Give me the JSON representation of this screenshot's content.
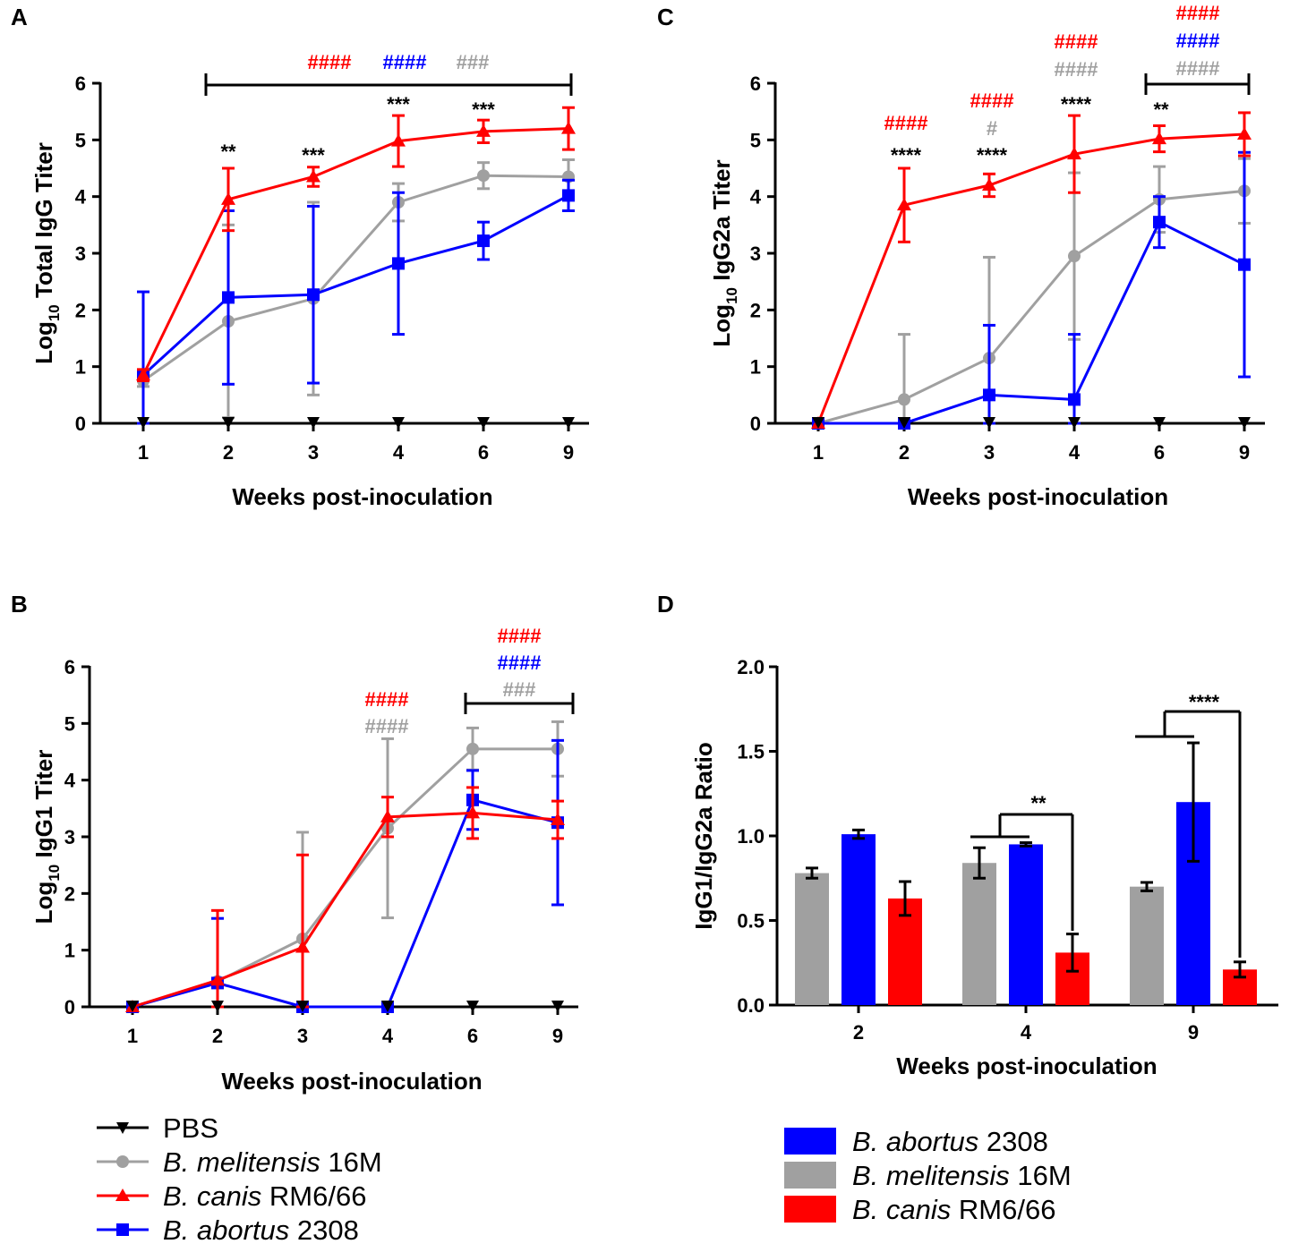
{
  "colors": {
    "pbs": "#000000",
    "melitensis": "#a0a0a0",
    "canis": "#ff0000",
    "abortus": "#0000ff",
    "axis": "#000000"
  },
  "legend_line": {
    "items": [
      {
        "prefix": "PBS",
        "suffix": "",
        "color": "#000000",
        "marker": "triangle-down-icon"
      },
      {
        "prefix": "B. melitensis",
        "suffix": " 16M",
        "color": "#a0a0a0",
        "marker": "circle-icon"
      },
      {
        "prefix": "B. canis",
        "suffix": " RM6/66",
        "color": "#ff0000",
        "marker": "triangle-up-icon"
      },
      {
        "prefix": "B. abortus",
        "suffix": " 2308",
        "color": "#0000ff",
        "marker": "square-icon"
      }
    ]
  },
  "legend_bar": {
    "items": [
      {
        "prefix": "B. abortus",
        "suffix": " 2308",
        "color": "#0000ff"
      },
      {
        "prefix": "B. melitensis",
        "suffix": " 16M",
        "color": "#a0a0a0"
      },
      {
        "prefix": "B. canis",
        "suffix": " RM6/66",
        "color": "#ff0000"
      }
    ]
  },
  "chart_data": [
    {
      "panel": "A",
      "type": "line",
      "xlabel": "Weeks post-inoculation",
      "ylabel_main": "Log",
      "ylabel_sub": "10",
      "ylabel_rest": " Total IgG Titer",
      "categories": [
        "1",
        "2",
        "3",
        "4",
        "6",
        "9"
      ],
      "ylim": [
        0,
        6
      ],
      "yticks": [
        "0",
        "1",
        "2",
        "3",
        "4",
        "5",
        "6"
      ],
      "series": [
        {
          "name": "PBS",
          "values": [
            0,
            0,
            0,
            0,
            0,
            0
          ],
          "err": [
            0,
            0,
            0,
            0,
            0,
            0
          ]
        },
        {
          "name": "B. melitensis 16M",
          "values": [
            0.75,
            1.8,
            2.2,
            3.9,
            4.37,
            4.35
          ],
          "err": [
            0.1,
            1.7,
            1.7,
            0.33,
            0.23,
            0.3
          ]
        },
        {
          "name": "B. canis RM6/66",
          "values": [
            0.85,
            3.95,
            4.35,
            4.98,
            5.15,
            5.2
          ],
          "err": [
            0.1,
            0.55,
            0.17,
            0.45,
            0.2,
            0.37
          ]
        },
        {
          "name": "B. abortus 2308",
          "values": [
            0.85,
            2.22,
            2.27,
            2.82,
            3.22,
            4.02
          ],
          "err": [
            1.47,
            1.53,
            1.56,
            1.25,
            0.33,
            0.27
          ]
        }
      ],
      "annotations": {
        "stars": [
          "**",
          "***",
          "***",
          "***"
        ],
        "hashes": [
          "####",
          "####",
          "###"
        ]
      }
    },
    {
      "panel": "B",
      "type": "line",
      "xlabel": "Weeks post-inoculation",
      "ylabel_main": "Log",
      "ylabel_sub": "10",
      "ylabel_rest": " IgG1 Titer",
      "categories": [
        "1",
        "2",
        "3",
        "4",
        "6",
        "9"
      ],
      "ylim": [
        0,
        6
      ],
      "yticks": [
        "0",
        "1",
        "2",
        "3",
        "4",
        "5",
        "6"
      ],
      "series": [
        {
          "name": "PBS",
          "values": [
            0,
            0,
            0,
            0,
            0,
            0
          ],
          "err": [
            0,
            0,
            0,
            0,
            0,
            0
          ]
        },
        {
          "name": "B. melitensis 16M",
          "values": [
            0,
            0.45,
            1.2,
            3.15,
            4.55,
            4.55
          ],
          "err": [
            0,
            0,
            1.88,
            1.58,
            0.37,
            0.48
          ]
        },
        {
          "name": "B. canis RM6/66",
          "values": [
            0,
            0.47,
            1.05,
            3.35,
            3.42,
            3.3
          ],
          "err": [
            0,
            1.23,
            1.63,
            0.35,
            0.45,
            0.33
          ]
        },
        {
          "name": "B. abortus 2308",
          "values": [
            0,
            0.42,
            0,
            0,
            3.65,
            3.25
          ],
          "err": [
            0,
            1.14,
            0,
            0,
            0.52,
            1.45
          ]
        }
      ],
      "annotations": {
        "hashes_week4": [
          "####",
          "####"
        ],
        "hashes_bracket": [
          "####",
          "####",
          "###"
        ]
      }
    },
    {
      "panel": "C",
      "type": "line",
      "xlabel": "Weeks post-inoculation",
      "ylabel_main": "Log",
      "ylabel_sub": "10",
      "ylabel_rest": " IgG2a Titer",
      "categories": [
        "1",
        "2",
        "3",
        "4",
        "6",
        "9"
      ],
      "ylim": [
        0,
        6
      ],
      "yticks": [
        "0",
        "1",
        "2",
        "3",
        "4",
        "5",
        "6"
      ],
      "series": [
        {
          "name": "PBS",
          "values": [
            0,
            0,
            0,
            0,
            0,
            0
          ],
          "err": [
            0,
            0,
            0,
            0,
            0,
            0
          ]
        },
        {
          "name": "B. melitensis 16M",
          "values": [
            0,
            0.42,
            1.15,
            2.95,
            3.95,
            4.1
          ],
          "err": [
            0,
            1.15,
            1.78,
            1.47,
            0.58,
            0.57
          ]
        },
        {
          "name": "B. canis RM6/66",
          "values": [
            0,
            3.85,
            4.2,
            4.75,
            5.02,
            5.1
          ],
          "err": [
            0,
            0.65,
            0.2,
            0.68,
            0.23,
            0.38
          ]
        },
        {
          "name": "B. abortus 2308",
          "values": [
            0,
            0,
            0.5,
            0.42,
            3.55,
            2.8
          ],
          "err": [
            0,
            0,
            1.23,
            1.15,
            0.45,
            1.98
          ]
        }
      ],
      "annotations": {
        "stars": [
          "****",
          "****",
          "****",
          "**"
        ],
        "hashes_w2": [
          "####"
        ],
        "hashes_w3": [
          "####",
          "#"
        ],
        "hashes_w4": [
          "####",
          "####"
        ],
        "hashes_bracket": [
          "####",
          "####",
          "####"
        ]
      }
    },
    {
      "panel": "D",
      "type": "bar",
      "xlabel": "Weeks post-inoculation",
      "ylabel": "IgG1/IgG2a Ratio",
      "categories": [
        "2",
        "4",
        "9"
      ],
      "ylim": [
        0,
        2.0
      ],
      "yticks": [
        "0.0",
        "0.5",
        "1.0",
        "1.5",
        "2.0"
      ],
      "series": [
        {
          "name": "B. melitensis 16M",
          "values": [
            0.78,
            0.84,
            0.7
          ],
          "err": [
            0.03,
            0.09,
            0.025
          ]
        },
        {
          "name": "B. abortus 2308",
          "values": [
            1.01,
            0.95,
            1.2
          ],
          "err": [
            0.025,
            0.01,
            0.35
          ]
        },
        {
          "name": "B. canis RM6/66",
          "values": [
            0.63,
            0.31,
            0.21
          ],
          "err": [
            0.1,
            0.11,
            0.045
          ]
        }
      ],
      "annotations": {
        "sig_week4": "**",
        "sig_week9": "****"
      }
    }
  ]
}
